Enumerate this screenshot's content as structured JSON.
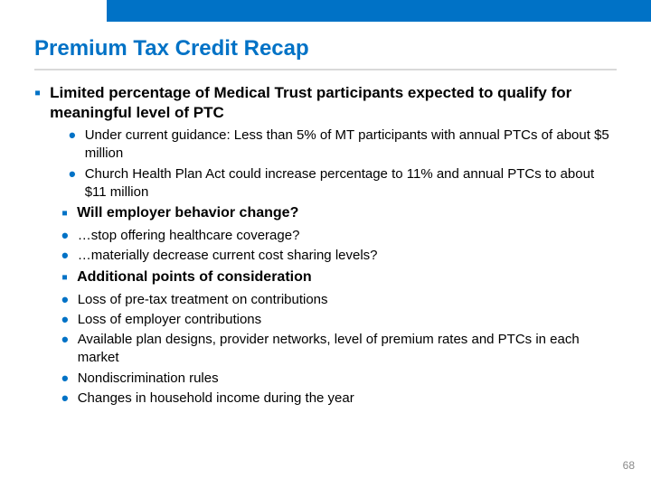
{
  "accent_color": "#0072c6",
  "title": "Premium Tax Credit Recap",
  "page_number": "68",
  "main": {
    "heading": "Limited percentage of Medical Trust participants expected to qualify for meaningful level of PTC",
    "subbullets": [
      "Under current guidance: Less than 5% of MT participants with annual PTCs of about $5 million",
      "Church Health Plan Act could increase percentage to 11% and annual PTCs to about $11 million"
    ],
    "q1": {
      "heading": "Will employer behavior change?",
      "bullets": [
        "…stop offering healthcare coverage?",
        "…materially decrease current cost sharing levels?"
      ]
    },
    "q2": {
      "heading": "Additional points of consideration",
      "bullets": [
        "Loss of pre-tax treatment on contributions",
        "Loss of employer contributions",
        "Available plan designs, provider networks, level of premium rates and PTCs in each market",
        "Nondiscrimination rules",
        "Changes in household income during the year"
      ]
    }
  }
}
